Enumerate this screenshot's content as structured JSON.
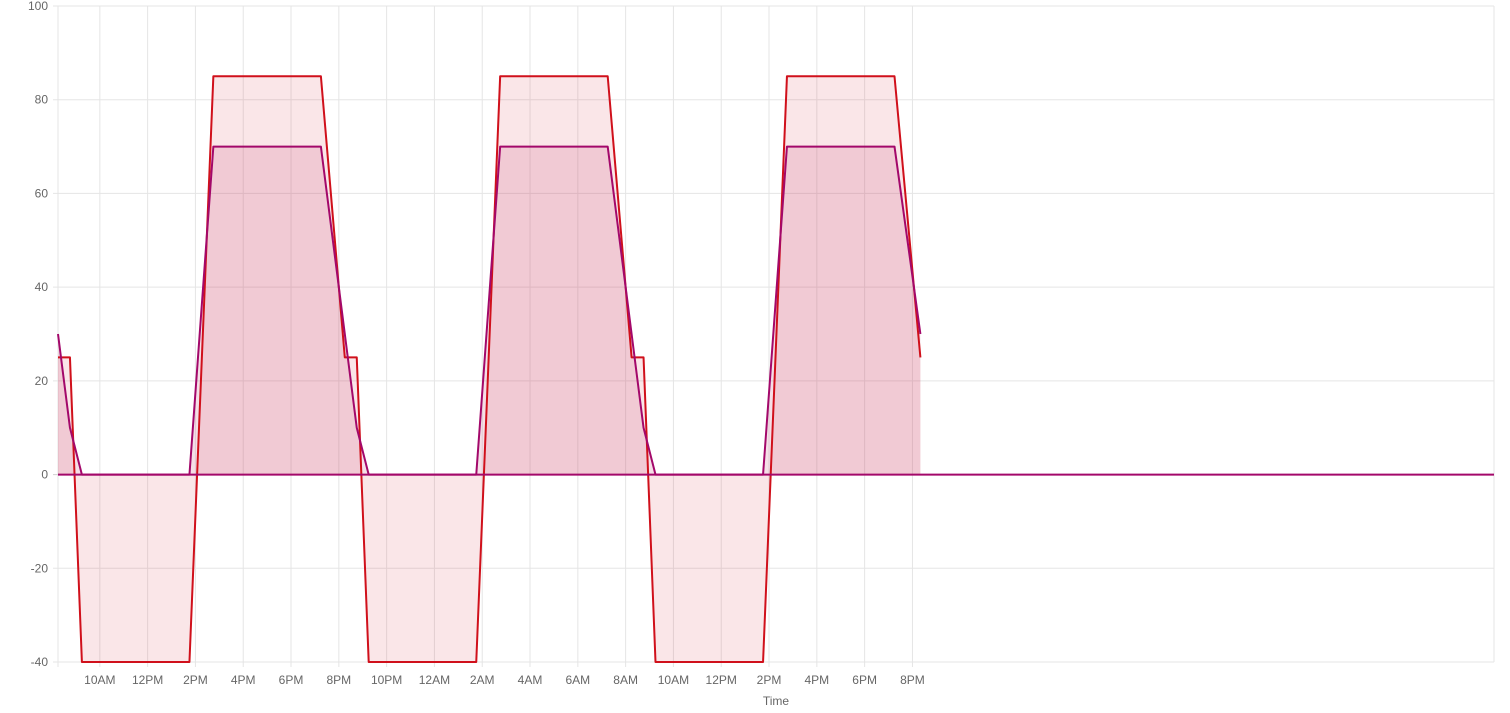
{
  "chart_data": {
    "type": "area",
    "xlabel": "Time",
    "ylabel": "",
    "title": "",
    "ylim": [
      -40,
      100
    ],
    "y_ticks": [
      100,
      80,
      60,
      40,
      20,
      0,
      -20,
      -40
    ],
    "x_range": [
      "2024-01-01T08:15",
      "2024-01-03T20:20"
    ],
    "x_ticks": [
      {
        "t": "2024-01-01T10:00",
        "label": "10AM"
      },
      {
        "t": "2024-01-01T12:00",
        "label": "12PM"
      },
      {
        "t": "2024-01-01T14:00",
        "label": "2PM"
      },
      {
        "t": "2024-01-01T16:00",
        "label": "4PM"
      },
      {
        "t": "2024-01-01T18:00",
        "label": "6PM"
      },
      {
        "t": "2024-01-01T20:00",
        "label": "8PM"
      },
      {
        "t": "2024-01-01T22:00",
        "label": "10PM"
      },
      {
        "t": "2024-01-02T00:00",
        "label": "12AM"
      },
      {
        "t": "2024-01-02T02:00",
        "label": "2AM"
      },
      {
        "t": "2024-01-02T04:00",
        "label": "4AM"
      },
      {
        "t": "2024-01-02T06:00",
        "label": "6AM"
      },
      {
        "t": "2024-01-02T08:00",
        "label": "8AM"
      },
      {
        "t": "2024-01-02T10:00",
        "label": "10AM"
      },
      {
        "t": "2024-01-02T12:00",
        "label": "12PM"
      },
      {
        "t": "2024-01-02T14:00",
        "label": "2PM"
      },
      {
        "t": "2024-01-02T16:00",
        "label": "4PM"
      },
      {
        "t": "2024-01-02T18:00",
        "label": "6PM"
      },
      {
        "t": "2024-01-02T20:00",
        "label": "8PM"
      }
    ],
    "grid": true,
    "legend": "none",
    "series": [
      {
        "color": "#d0101b",
        "fill": "rgba(220, 60, 75, 0.13)",
        "points": [
          [
            "2024-01-01T08:15",
            25
          ],
          [
            "2024-01-01T08:45",
            25
          ],
          [
            "2024-01-01T09:15",
            -40
          ],
          [
            "2024-01-01T13:45",
            -40
          ],
          [
            "2024-01-01T14:45",
            85
          ],
          [
            "2024-01-01T19:15",
            85
          ],
          [
            "2024-01-01T20:15",
            25
          ],
          [
            "2024-01-01T20:45",
            25
          ],
          [
            "2024-01-01T21:15",
            -40
          ],
          [
            "2024-01-02T01:45",
            -40
          ],
          [
            "2024-01-02T02:45",
            85
          ],
          [
            "2024-01-02T07:15",
            85
          ],
          [
            "2024-01-02T08:15",
            25
          ],
          [
            "2024-01-02T08:45",
            25
          ],
          [
            "2024-01-02T09:15",
            -40
          ],
          [
            "2024-01-02T13:45",
            -40
          ],
          [
            "2024-01-02T14:45",
            85
          ],
          [
            "2024-01-02T19:15",
            85
          ],
          [
            "2024-01-02T20:20",
            25
          ]
        ]
      },
      {
        "color": "#a3086a",
        "fill": "rgba(200, 80, 120, 0.18)",
        "points": [
          [
            "2024-01-01T08:15",
            30
          ],
          [
            "2024-01-01T08:45",
            10
          ],
          [
            "2024-01-01T09:15",
            0
          ],
          [
            "2024-01-01T13:45",
            0
          ],
          [
            "2024-01-01T14:45",
            70
          ],
          [
            "2024-01-01T19:15",
            70
          ],
          [
            "2024-01-01T20:45",
            10
          ],
          [
            "2024-01-01T21:15",
            0
          ],
          [
            "2024-01-02T01:45",
            0
          ],
          [
            "2024-01-02T02:45",
            70
          ],
          [
            "2024-01-02T07:15",
            70
          ],
          [
            "2024-01-02T08:45",
            10
          ],
          [
            "2024-01-02T09:15",
            0
          ],
          [
            "2024-01-02T13:45",
            0
          ],
          [
            "2024-01-02T14:45",
            70
          ],
          [
            "2024-01-02T19:15",
            70
          ],
          [
            "2024-01-02T20:20",
            30
          ]
        ]
      }
    ]
  }
}
